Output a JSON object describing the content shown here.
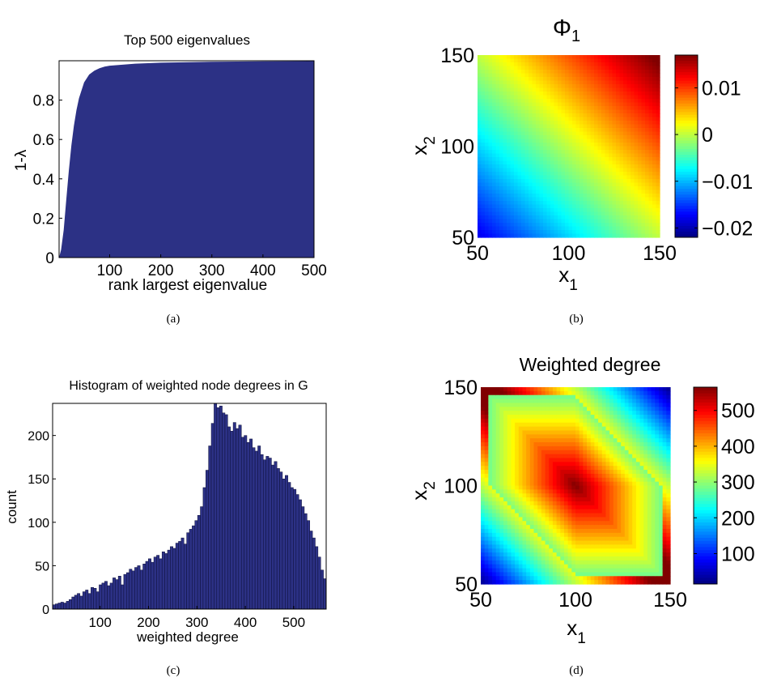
{
  "figure": {
    "captions": [
      "(a)",
      "(b)",
      "(c)",
      "(d)"
    ]
  },
  "chart_data": [
    {
      "id": "a",
      "type": "area",
      "title": "Top 500 eigenvalues",
      "xlabel": "rank largest eigenvalue",
      "ylabel": "1-λ",
      "xlim": [
        1,
        500
      ],
      "ylim": [
        0,
        1
      ],
      "xticks": [
        100,
        200,
        300,
        400,
        500
      ],
      "yticks": [
        0,
        0.2,
        0.4,
        0.6,
        0.8
      ],
      "x": [
        1,
        5,
        10,
        15,
        20,
        25,
        30,
        35,
        40,
        50,
        60,
        70,
        80,
        90,
        100,
        150,
        200,
        300,
        400,
        500
      ],
      "y": [
        0.0,
        0.04,
        0.14,
        0.29,
        0.44,
        0.57,
        0.67,
        0.75,
        0.81,
        0.89,
        0.93,
        0.95,
        0.962,
        0.97,
        0.975,
        0.985,
        0.99,
        0.995,
        0.997,
        0.998
      ],
      "fill_color": "#2c3185"
    },
    {
      "id": "b",
      "type": "heatmap",
      "title_base": "Φ",
      "title_sub": "1",
      "xlabel_base": "x",
      "xlabel_sub": "1",
      "ylabel_base": "x",
      "ylabel_sub": "2",
      "xlim": [
        50,
        150
      ],
      "ylim": [
        50,
        150
      ],
      "xticks": [
        50,
        100,
        150
      ],
      "yticks": [
        50,
        100,
        150
      ],
      "function": "0.018 * ((x1 - 100) + (x2 - 100)) / 100",
      "clim": [
        -0.022,
        0.017
      ],
      "colorbar_ticks": [
        0.01,
        0,
        -0.01,
        -0.02
      ],
      "colorbar_ticklabels": [
        "0.01",
        "0",
        "−0.01",
        "−0.02"
      ],
      "colormap": "jet"
    },
    {
      "id": "c",
      "type": "bar",
      "title": "Histogram of weighted node degrees in G",
      "xlabel": "weighted degree",
      "ylabel": "count",
      "xlim": [
        2,
        567
      ],
      "ylim": [
        0,
        237
      ],
      "xticks": [
        100,
        200,
        300,
        400,
        500
      ],
      "yticks": [
        0,
        50,
        100,
        150,
        200
      ],
      "bin_start": 2,
      "bin_width": 5.65,
      "values": [
        5,
        6,
        7,
        8,
        7,
        9,
        11,
        14,
        16,
        18,
        15,
        20,
        22,
        18,
        25,
        24,
        20,
        28,
        30,
        32,
        27,
        30,
        36,
        34,
        38,
        28,
        40,
        42,
        46,
        44,
        48,
        50,
        45,
        52,
        55,
        58,
        54,
        60,
        62,
        58,
        66,
        64,
        68,
        72,
        70,
        76,
        78,
        82,
        75,
        88,
        92,
        96,
        102,
        108,
        118,
        140,
        160,
        188,
        214,
        237,
        232,
        234,
        226,
        224,
        210,
        205,
        215,
        208,
        212,
        198,
        200,
        192,
        196,
        186,
        182,
        188,
        178,
        172,
        176,
        174,
        166,
        170,
        162,
        158,
        150,
        154,
        146,
        140,
        138,
        132,
        126,
        118,
        110,
        102,
        90,
        82,
        72,
        60,
        45,
        35
      ],
      "bar_color": "#2c3185"
    },
    {
      "id": "d",
      "type": "heatmap",
      "title": "Weighted degree",
      "xlabel_base": "x",
      "xlabel_sub": "1",
      "ylabel_base": "x",
      "ylabel_sub": "2",
      "xlim": [
        50,
        150
      ],
      "ylim": [
        50,
        150
      ],
      "xticks": [
        50,
        100,
        150
      ],
      "yticks": [
        50,
        100,
        150
      ],
      "function": "565 - 6.2 * max(|x1-100|, |x2-100|, |x1+x2-200|) with outer band 140-350",
      "clim": [
        15,
        565
      ],
      "colorbar_ticks": [
        500,
        400,
        300,
        200,
        100
      ],
      "colorbar_ticklabels": [
        "500",
        "400",
        "300",
        "200",
        "100"
      ],
      "colormap": "jet"
    }
  ]
}
